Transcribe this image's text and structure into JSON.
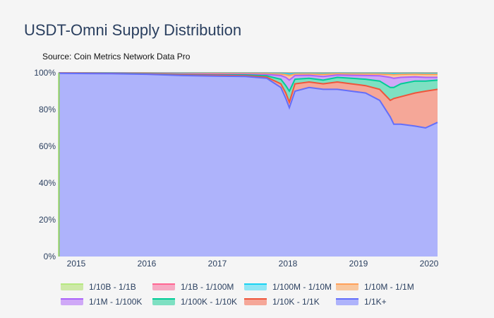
{
  "chart_data": {
    "type": "area",
    "title": "USDT-Omni Supply Distribution",
    "subtitle": "Source: Coin Metrics Network Data Pro",
    "xlabel": "",
    "ylabel": "",
    "x_ticks": [
      "2015",
      "2016",
      "2017",
      "2018",
      "2019",
      "2020"
    ],
    "y_ticks": [
      "0%",
      "20%",
      "40%",
      "60%",
      "80%",
      "100%"
    ],
    "ylim": [
      0,
      100
    ],
    "x_range": [
      2014.75,
      2020.12
    ],
    "x": [
      2014.75,
      2015.5,
      2016.0,
      2016.5,
      2017.0,
      2017.4,
      2017.7,
      2017.9,
      2017.97,
      2018.02,
      2018.1,
      2018.3,
      2018.5,
      2018.7,
      2018.9,
      2019.1,
      2019.3,
      2019.45,
      2019.5,
      2019.6,
      2019.8,
      2019.95,
      2020.12
    ],
    "series": [
      {
        "name": "1/1K+",
        "color": "#636efa",
        "fill": "#aeb3fb",
        "values": [
          99.7,
          99.5,
          99.2,
          98.5,
          98.2,
          98,
          97,
          92,
          86,
          81,
          90,
          92,
          91,
          91,
          90,
          89,
          85,
          76,
          72,
          72,
          71,
          70,
          73
        ]
      },
      {
        "name": "1/10K - 1/1K",
        "color": "#ef553b",
        "fill": "#f5a798",
        "values": [
          99.8,
          99.6,
          99.4,
          98.8,
          98.6,
          98.4,
          97.6,
          94,
          89,
          84,
          94,
          95,
          94,
          95,
          94,
          93,
          91,
          85,
          86,
          87,
          89,
          90,
          91
        ]
      },
      {
        "name": "1/100K - 1/10K",
        "color": "#00cc96",
        "fill": "#7ee0c2",
        "values": [
          99.85,
          99.7,
          99.5,
          99,
          98.8,
          98.8,
          98.3,
          96.5,
          93,
          90,
          96.5,
          97,
          96,
          97.5,
          97,
          96.5,
          95.5,
          92,
          92,
          94,
          95.5,
          95.5,
          96
        ]
      },
      {
        "name": "1/1M - 1/100K",
        "color": "#ab63fa",
        "fill": "#cfa8f7",
        "values": [
          99.9,
          99.8,
          99.6,
          99.3,
          99.2,
          99.2,
          99,
          98.5,
          97.5,
          96,
          98.5,
          98.6,
          98,
          98.8,
          98.6,
          98.5,
          98.4,
          97.5,
          97,
          97.5,
          97.8,
          97.5,
          97.5
        ]
      },
      {
        "name": "1/10M - 1/1M",
        "color": "#ffa15a",
        "fill": "#f8c79e",
        "values": [
          99.95,
          99.9,
          99.8,
          99.6,
          99.6,
          99.6,
          99.5,
          99.3,
          99,
          98.5,
          99.3,
          99.4,
          99.2,
          99.5,
          99.4,
          99.4,
          99.3,
          99.1,
          99,
          99.2,
          99.3,
          99.2,
          99.2
        ]
      },
      {
        "name": "1/100M - 1/10M",
        "color": "#19d3f3",
        "fill": "#8fe6f5",
        "values": [
          99.97,
          99.95,
          99.9,
          99.8,
          99.8,
          99.8,
          99.75,
          99.7,
          99.6,
          99.4,
          99.7,
          99.7,
          99.6,
          99.8,
          99.7,
          99.7,
          99.7,
          99.6,
          99.6,
          99.6,
          99.7,
          99.6,
          99.6
        ]
      },
      {
        "name": "1/1B - 1/100M",
        "color": "#ff6692",
        "fill": "#f6aac3",
        "values": [
          99.99,
          99.98,
          99.95,
          99.9,
          99.9,
          99.9,
          99.9,
          99.85,
          99.8,
          99.7,
          99.85,
          99.85,
          99.8,
          99.9,
          99.85,
          99.85,
          99.85,
          99.8,
          99.8,
          99.8,
          99.85,
          99.8,
          99.8
        ]
      },
      {
        "name": "1/10B - 1/1B",
        "color": "#b6e880",
        "fill": "#cde9a7",
        "values": [
          100,
          100,
          100,
          100,
          100,
          100,
          100,
          100,
          100,
          100,
          100,
          100,
          100,
          100,
          100,
          100,
          100,
          100,
          100,
          100,
          100,
          100,
          100
        ]
      }
    ],
    "legend_order": [
      "1/10B - 1/1B",
      "1/1B - 1/100M",
      "1/100M - 1/10M",
      "1/10M - 1/1M",
      "1/1M - 1/100K",
      "1/100K - 1/10K",
      "1/10K - 1/1K",
      "1/1K+"
    ],
    "legend_position": "bottom"
  }
}
